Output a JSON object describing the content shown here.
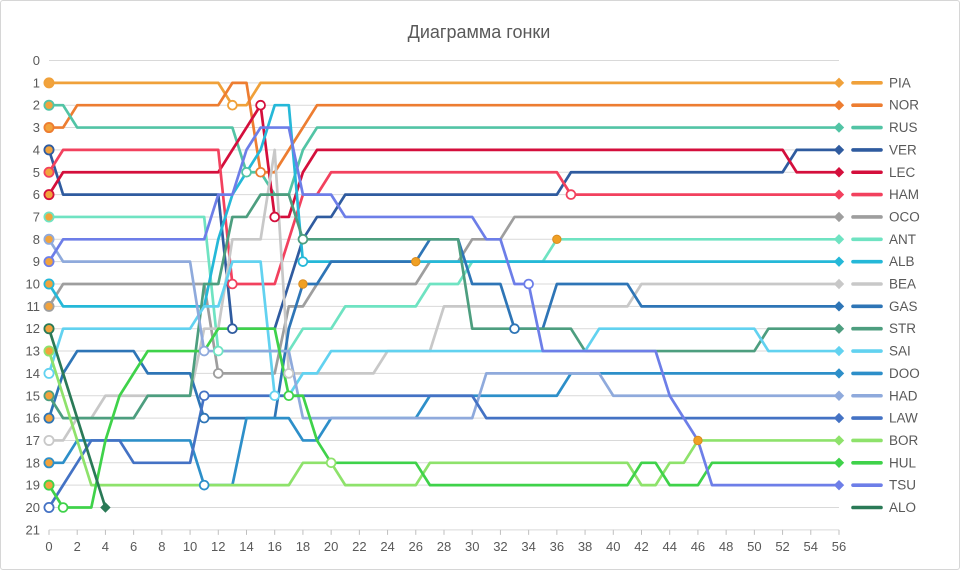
{
  "chart_data": {
    "type": "line",
    "title": "Диаграмма гонки",
    "xlabel": "",
    "ylabel": "",
    "x_min": 0,
    "x_max": 56,
    "x_tick_step": 2,
    "y_min": 0,
    "y_max": 21,
    "y_tick_step": 1,
    "y_axis_meaning": "race position (1 = leader)",
    "x_axis_meaning": "lap",
    "grid": "horizontal",
    "legend_position": "right",
    "x_ticks": [
      0,
      2,
      4,
      6,
      8,
      10,
      12,
      14,
      16,
      18,
      20,
      22,
      24,
      26,
      28,
      30,
      32,
      34,
      36,
      38,
      40,
      42,
      44,
      46,
      48,
      50,
      52,
      54,
      56
    ],
    "y_ticks": [
      0,
      1,
      2,
      3,
      4,
      5,
      6,
      7,
      8,
      9,
      10,
      11,
      12,
      13,
      14,
      15,
      16,
      17,
      18,
      19,
      20,
      21
    ],
    "series": [
      {
        "code": "PIA",
        "color": "#f0a13a",
        "start": "filled",
        "final_pos": 1,
        "steps": [
          [
            0,
            1
          ],
          [
            13,
            2
          ],
          [
            15,
            1
          ]
        ],
        "pits": [
          [
            13,
            2
          ]
        ],
        "dots": []
      },
      {
        "code": "NOR",
        "color": "#ed7d31",
        "start": "filled",
        "final_pos": 2,
        "steps": [
          [
            0,
            3
          ],
          [
            2,
            2
          ],
          [
            13,
            1
          ],
          [
            15,
            5
          ],
          [
            17,
            4
          ],
          [
            18,
            3
          ],
          [
            19,
            2
          ]
        ],
        "pits": [
          [
            15,
            5
          ]
        ],
        "dots": []
      },
      {
        "code": "RUS",
        "color": "#52c4a5",
        "start": "filled",
        "final_pos": 3,
        "steps": [
          [
            0,
            2
          ],
          [
            2,
            3
          ],
          [
            14,
            5
          ],
          [
            16,
            6
          ],
          [
            18,
            4
          ],
          [
            19,
            3
          ]
        ],
        "pits": [
          [
            14,
            5
          ]
        ],
        "dots": []
      },
      {
        "code": "VER",
        "color": "#2f5b9f",
        "start": "filled",
        "final_pos": 4,
        "steps": [
          [
            0,
            4
          ],
          [
            1,
            6
          ],
          [
            13,
            12
          ],
          [
            17,
            10
          ],
          [
            18,
            8
          ],
          [
            19,
            7
          ],
          [
            21,
            6
          ],
          [
            37,
            5
          ],
          [
            53,
            4
          ]
        ],
        "pits": [
          [
            13,
            12
          ]
        ],
        "dots": []
      },
      {
        "code": "LEC",
        "color": "#d40f3c",
        "start": "filled",
        "final_pos": 5,
        "steps": [
          [
            0,
            6
          ],
          [
            1,
            5
          ],
          [
            13,
            4
          ],
          [
            14,
            3
          ],
          [
            15,
            2
          ],
          [
            16,
            7
          ],
          [
            18,
            5
          ],
          [
            19,
            4
          ],
          [
            53,
            5
          ]
        ],
        "pits": [
          [
            15,
            2
          ],
          [
            16,
            7
          ]
        ],
        "dots": []
      },
      {
        "code": "HAM",
        "color": "#f2415e",
        "start": "filled",
        "final_pos": 6,
        "steps": [
          [
            0,
            5
          ],
          [
            1,
            4
          ],
          [
            13,
            10
          ],
          [
            17,
            8
          ],
          [
            18,
            6
          ],
          [
            20,
            5
          ],
          [
            37,
            6
          ]
        ],
        "pits": [
          [
            13,
            10
          ],
          [
            37,
            6
          ]
        ],
        "dots": []
      },
      {
        "code": "OCO",
        "color": "#9e9e9e",
        "start": "filled",
        "final_pos": 7,
        "steps": [
          [
            0,
            11
          ],
          [
            1,
            10
          ],
          [
            12,
            14
          ],
          [
            17,
            11
          ],
          [
            19,
            10
          ],
          [
            27,
            9
          ],
          [
            30,
            8
          ],
          [
            33,
            7
          ]
        ],
        "pits": [
          [
            12,
            14
          ]
        ],
        "dots": []
      },
      {
        "code": "ANT",
        "color": "#6fe3c2",
        "start": "filled",
        "final_pos": 8,
        "steps": [
          [
            0,
            7
          ],
          [
            12,
            13
          ],
          [
            18,
            12
          ],
          [
            21,
            11
          ],
          [
            27,
            10
          ],
          [
            30,
            9
          ],
          [
            36,
            8
          ]
        ],
        "pits": [
          [
            12,
            13
          ]
        ],
        "dots": [
          [
            36,
            8
          ]
        ]
      },
      {
        "code": "ALB",
        "color": "#25b8d8",
        "start": "filled",
        "final_pos": 9,
        "steps": [
          [
            0,
            10
          ],
          [
            1,
            11
          ],
          [
            12,
            8
          ],
          [
            13,
            6
          ],
          [
            14,
            5
          ],
          [
            15,
            4
          ],
          [
            16,
            2
          ],
          [
            18,
            9
          ]
        ],
        "pits": [
          [
            18,
            9
          ]
        ],
        "dots": []
      },
      {
        "code": "BEA",
        "color": "#c8c8c8",
        "start": "open",
        "final_pos": 10,
        "steps": [
          [
            0,
            17
          ],
          [
            2,
            16
          ],
          [
            4,
            15
          ],
          [
            11,
            12
          ],
          [
            13,
            8
          ],
          [
            16,
            4
          ],
          [
            17,
            14
          ],
          [
            24,
            13
          ],
          [
            28,
            11
          ],
          [
            42,
            10
          ]
        ],
        "pits": [
          [
            17,
            14
          ]
        ],
        "dots": []
      },
      {
        "code": "GAS",
        "color": "#2e75b6",
        "start": "filled",
        "final_pos": 11,
        "steps": [
          [
            0,
            16
          ],
          [
            1,
            14
          ],
          [
            2,
            13
          ],
          [
            7,
            14
          ],
          [
            11,
            16
          ],
          [
            17,
            12
          ],
          [
            18,
            10
          ],
          [
            20,
            9
          ],
          [
            27,
            8
          ],
          [
            30,
            10
          ],
          [
            33,
            12
          ],
          [
            36,
            10
          ],
          [
            42,
            11
          ]
        ],
        "pits": [
          [
            11,
            16
          ],
          [
            33,
            12
          ]
        ],
        "dots": [
          [
            18,
            10
          ],
          [
            26,
            9
          ]
        ]
      },
      {
        "code": "STR",
        "color": "#4d9e7f",
        "start": "filled",
        "final_pos": 12,
        "steps": [
          [
            0,
            15
          ],
          [
            1,
            16
          ],
          [
            7,
            15
          ],
          [
            11,
            10
          ],
          [
            13,
            7
          ],
          [
            15,
            6
          ],
          [
            18,
            8
          ],
          [
            30,
            12
          ],
          [
            38,
            13
          ],
          [
            51,
            12
          ]
        ],
        "pits": [
          [
            18,
            8
          ]
        ],
        "dots": []
      },
      {
        "code": "SAI",
        "color": "#62d2f0",
        "start": "open",
        "final_pos": 13,
        "steps": [
          [
            0,
            14
          ],
          [
            1,
            12
          ],
          [
            11,
            11
          ],
          [
            13,
            9
          ],
          [
            16,
            15
          ],
          [
            18,
            14
          ],
          [
            20,
            13
          ],
          [
            39,
            12
          ],
          [
            51,
            13
          ]
        ],
        "pits": [
          [
            16,
            15
          ]
        ],
        "dots": []
      },
      {
        "code": "DOO",
        "color": "#2d8fc9",
        "start": "filled",
        "final_pos": 14,
        "steps": [
          [
            0,
            18
          ],
          [
            2,
            17
          ],
          [
            11,
            19
          ],
          [
            14,
            16
          ],
          [
            18,
            17
          ],
          [
            20,
            16
          ],
          [
            27,
            15
          ],
          [
            37,
            14
          ]
        ],
        "pits": [
          [
            11,
            19
          ]
        ],
        "dots": []
      },
      {
        "code": "HAD",
        "color": "#8faadc",
        "start": "filled",
        "final_pos": 15,
        "steps": [
          [
            0,
            8
          ],
          [
            1,
            9
          ],
          [
            11,
            13
          ],
          [
            18,
            16
          ],
          [
            31,
            14
          ],
          [
            40,
            15
          ]
        ],
        "pits": [
          [
            11,
            13
          ]
        ],
        "dots": []
      },
      {
        "code": "LAW",
        "color": "#4472c4",
        "start": "open",
        "final_pos": 16,
        "steps": [
          [
            0,
            20
          ],
          [
            1,
            19
          ],
          [
            2,
            18
          ],
          [
            3,
            17
          ],
          [
            6,
            18
          ],
          [
            11,
            15
          ],
          [
            31,
            16
          ]
        ],
        "pits": [
          [
            11,
            15
          ]
        ],
        "dots": []
      },
      {
        "code": "BOR",
        "color": "#8ee26b",
        "start": "filled",
        "final_pos": 17,
        "steps": [
          [
            0,
            13
          ],
          [
            1,
            15
          ],
          [
            2,
            17
          ],
          [
            3,
            19
          ],
          [
            18,
            18
          ],
          [
            21,
            19
          ],
          [
            27,
            18
          ],
          [
            42,
            19
          ],
          [
            44,
            18
          ],
          [
            46,
            17
          ]
        ],
        "pits": [
          [
            20,
            18
          ]
        ],
        "dots": [
          [
            46,
            17
          ]
        ]
      },
      {
        "code": "HUL",
        "color": "#3fd24a",
        "start": "filled",
        "final_pos": 18,
        "steps": [
          [
            0,
            19
          ],
          [
            1,
            20
          ],
          [
            4,
            17
          ],
          [
            5,
            15
          ],
          [
            6,
            14
          ],
          [
            7,
            13
          ],
          [
            12,
            12
          ],
          [
            17,
            15
          ],
          [
            19,
            17
          ],
          [
            20,
            18
          ],
          [
            27,
            19
          ],
          [
            42,
            18
          ],
          [
            44,
            19
          ],
          [
            47,
            18
          ]
        ],
        "pits": [
          [
            1,
            20
          ],
          [
            17,
            15
          ]
        ],
        "dots": []
      },
      {
        "code": "TSU",
        "color": "#6d7ee8",
        "start": "filled",
        "final_pos": 19,
        "steps": [
          [
            0,
            9
          ],
          [
            1,
            8
          ],
          [
            12,
            6
          ],
          [
            14,
            4
          ],
          [
            15,
            3
          ],
          [
            18,
            6
          ],
          [
            21,
            7
          ],
          [
            31,
            8
          ],
          [
            33,
            10
          ],
          [
            35,
            13
          ],
          [
            44,
            15
          ],
          [
            45,
            16
          ],
          [
            46,
            17
          ],
          [
            47,
            19
          ]
        ],
        "pits": [
          [
            34,
            10
          ]
        ],
        "dots": []
      },
      {
        "code": "ALO",
        "color": "#2a7a57",
        "start": "filled",
        "final_pos": 20,
        "steps": [
          [
            0,
            12
          ],
          [
            1,
            14
          ],
          [
            2,
            16
          ],
          [
            3,
            18
          ],
          [
            4,
            20
          ]
        ],
        "pits": [],
        "dots": [],
        "retired_at_lap": 4
      }
    ]
  },
  "style": {
    "grid_color": "#d9d9d9",
    "tick_color": "#bfbfbf",
    "text_color": "#595959",
    "start_dot_fill": "#f2a33c",
    "mid_dot_fill": "#f0a024",
    "background": "#ffffff"
  }
}
